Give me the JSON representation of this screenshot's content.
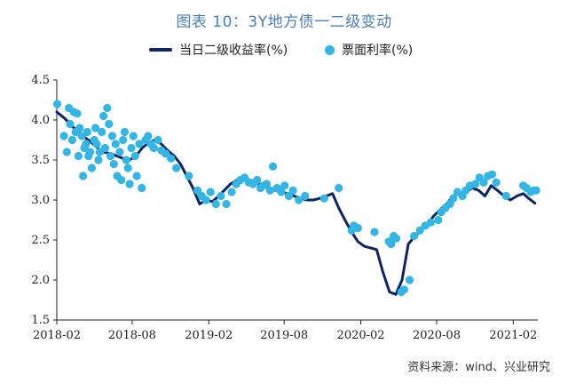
{
  "page": {
    "title": "图表 10：3Y地方债一二级变动",
    "source": "资料来源：wind、兴业研究"
  },
  "colors": {
    "line": "#0d2561",
    "dots": "#33b5e5",
    "title": "#4a7fb8",
    "axis": "#222222"
  },
  "chart_data": {
    "type": "line",
    "title": "图表 10：3Y地方债一二级变动",
    "ylim": [
      1.5,
      4.5
    ],
    "yticks": [
      "1.5",
      "2.0",
      "2.5",
      "3.0",
      "3.5",
      "4.0",
      "4.5"
    ],
    "xlim": [
      "2018-02",
      "2021-04"
    ],
    "xticks": [
      "2018-02",
      "2018-08",
      "2019-02",
      "2019-08",
      "2020-02",
      "2020-08",
      "2021-02"
    ],
    "grid": false,
    "legend_position": "top-center",
    "series": [
      {
        "name": "当日二级收益率(%)",
        "kind": "line",
        "x": [
          "2018-02-01",
          "2018-02-20",
          "2018-03-10",
          "2018-03-25",
          "2018-04-10",
          "2018-04-25",
          "2018-05-10",
          "2018-05-25",
          "2018-06-10",
          "2018-06-25",
          "2018-07-10",
          "2018-07-25",
          "2018-08-10",
          "2018-08-25",
          "2018-09-10",
          "2018-09-25",
          "2018-10-10",
          "2018-10-25",
          "2018-11-10",
          "2018-11-25",
          "2018-12-10",
          "2018-12-25",
          "2019-01-10",
          "2019-01-25",
          "2019-02-10",
          "2019-02-25",
          "2019-03-10",
          "2019-03-25",
          "2019-04-10",
          "2019-04-25",
          "2019-05-10",
          "2019-05-25",
          "2019-06-10",
          "2019-06-25",
          "2019-07-10",
          "2019-07-25",
          "2019-08-10",
          "2019-08-25",
          "2019-09-10",
          "2019-09-25",
          "2019-10-10",
          "2019-10-25",
          "2019-11-10",
          "2019-11-25",
          "2019-12-10",
          "2019-12-25",
          "2020-01-10",
          "2020-01-25",
          "2020-02-10",
          "2020-02-25",
          "2020-03-10",
          "2020-03-25",
          "2020-04-10",
          "2020-04-25",
          "2020-05-10",
          "2020-05-25",
          "2020-06-10",
          "2020-06-25",
          "2020-07-10",
          "2020-07-25",
          "2020-08-10",
          "2020-08-25",
          "2020-09-10",
          "2020-09-25",
          "2020-10-10",
          "2020-10-25",
          "2020-11-10",
          "2020-11-25",
          "2020-12-10",
          "2020-12-25",
          "2021-01-10",
          "2021-01-25",
          "2021-02-10",
          "2021-02-25",
          "2021-03-10",
          "2021-03-25"
        ],
        "values": [
          4.1,
          4.02,
          3.92,
          3.85,
          3.78,
          3.72,
          3.65,
          3.6,
          3.58,
          3.55,
          3.52,
          3.5,
          3.55,
          3.65,
          3.72,
          3.75,
          3.7,
          3.62,
          3.55,
          3.45,
          3.3,
          3.15,
          2.95,
          3.0,
          2.98,
          3.05,
          3.12,
          3.2,
          3.25,
          3.28,
          3.25,
          3.22,
          3.18,
          3.15,
          3.12,
          3.1,
          3.08,
          3.05,
          3.02,
          3.0,
          3.0,
          3.02,
          3.05,
          3.08,
          2.9,
          2.75,
          2.6,
          2.48,
          2.42,
          2.4,
          2.38,
          2.1,
          1.85,
          1.82,
          2.0,
          2.45,
          2.55,
          2.62,
          2.7,
          2.8,
          2.88,
          2.95,
          3.05,
          3.08,
          3.1,
          3.15,
          3.12,
          3.05,
          3.18,
          3.12,
          3.05,
          3.0,
          3.05,
          3.08,
          3.02,
          2.96
        ]
      },
      {
        "name": "票面利率(%)",
        "kind": "scatter",
        "x": [
          "2018-02-02",
          "2018-02-18",
          "2018-02-25",
          "2018-03-02",
          "2018-03-05",
          "2018-03-10",
          "2018-03-14",
          "2018-03-18",
          "2018-03-22",
          "2018-03-25",
          "2018-03-28",
          "2018-04-02",
          "2018-04-05",
          "2018-04-08",
          "2018-04-12",
          "2018-04-15",
          "2018-04-18",
          "2018-04-22",
          "2018-04-26",
          "2018-05-02",
          "2018-05-05",
          "2018-05-08",
          "2018-05-12",
          "2018-05-15",
          "2018-05-20",
          "2018-05-24",
          "2018-05-28",
          "2018-06-02",
          "2018-06-06",
          "2018-06-10",
          "2018-06-14",
          "2018-06-18",
          "2018-06-22",
          "2018-06-26",
          "2018-07-02",
          "2018-07-06",
          "2018-07-10",
          "2018-07-14",
          "2018-07-18",
          "2018-07-22",
          "2018-07-26",
          "2018-07-30",
          "2018-08-04",
          "2018-08-08",
          "2018-08-12",
          "2018-08-18",
          "2018-08-24",
          "2018-09-02",
          "2018-09-08",
          "2018-09-15",
          "2018-09-22",
          "2018-10-02",
          "2018-10-10",
          "2018-10-20",
          "2018-11-02",
          "2018-11-15",
          "2018-12-15",
          "2019-01-05",
          "2019-01-15",
          "2019-01-25",
          "2019-02-05",
          "2019-02-18",
          "2019-03-02",
          "2019-03-15",
          "2019-03-28",
          "2019-04-08",
          "2019-04-18",
          "2019-04-28",
          "2019-05-08",
          "2019-05-18",
          "2019-05-28",
          "2019-06-05",
          "2019-06-12",
          "2019-06-20",
          "2019-06-28",
          "2019-07-05",
          "2019-07-15",
          "2019-07-25",
          "2019-08-02",
          "2019-08-12",
          "2019-08-22",
          "2019-09-05",
          "2019-09-20",
          "2019-11-05",
          "2019-12-10",
          "2020-01-10",
          "2020-01-15",
          "2020-01-25",
          "2020-03-05",
          "2020-04-08",
          "2020-04-14",
          "2020-04-20",
          "2020-04-26",
          "2020-05-08",
          "2020-05-15",
          "2020-05-28",
          "2020-06-08",
          "2020-06-22",
          "2020-07-05",
          "2020-07-18",
          "2020-08-05",
          "2020-08-12",
          "2020-08-22",
          "2020-09-02",
          "2020-09-10",
          "2020-09-20",
          "2020-10-02",
          "2020-10-10",
          "2020-10-20",
          "2020-11-02",
          "2020-11-12",
          "2020-11-22",
          "2020-12-02",
          "2020-12-12",
          "2020-12-22",
          "2021-01-15",
          "2021-02-25",
          "2021-03-05",
          "2021-03-15",
          "2021-03-22",
          "2021-03-28"
        ],
        "values": [
          4.2,
          3.8,
          3.6,
          4.15,
          3.95,
          3.75,
          4.1,
          3.85,
          4.08,
          3.55,
          3.9,
          3.8,
          3.3,
          3.65,
          3.7,
          3.85,
          3.55,
          3.6,
          3.4,
          3.75,
          3.9,
          3.7,
          3.5,
          3.6,
          3.85,
          4.05,
          3.65,
          4.15,
          3.95,
          3.55,
          3.8,
          3.45,
          3.7,
          3.3,
          3.6,
          3.25,
          3.75,
          3.85,
          3.5,
          3.4,
          3.2,
          3.65,
          3.8,
          3.55,
          3.3,
          3.7,
          3.15,
          3.75,
          3.8,
          3.7,
          3.65,
          3.75,
          3.62,
          3.58,
          3.52,
          3.4,
          3.3,
          3.12,
          3.05,
          3.0,
          3.1,
          2.95,
          3.05,
          2.95,
          3.1,
          3.2,
          3.25,
          3.28,
          3.22,
          3.2,
          3.25,
          3.15,
          3.18,
          3.2,
          3.12,
          3.42,
          3.15,
          3.1,
          3.18,
          3.05,
          3.12,
          3.0,
          3.05,
          3.02,
          3.15,
          2.62,
          2.68,
          2.65,
          2.6,
          2.48,
          2.45,
          2.55,
          2.52,
          1.85,
          1.88,
          2.0,
          2.55,
          2.62,
          2.68,
          2.72,
          2.75,
          2.85,
          2.9,
          2.95,
          3.02,
          3.1,
          3.05,
          3.12,
          3.18,
          3.2,
          3.28,
          3.22,
          3.3,
          3.32,
          3.22,
          3.05,
          3.18,
          3.15,
          3.1,
          3.12,
          3.12
        ]
      }
    ]
  }
}
